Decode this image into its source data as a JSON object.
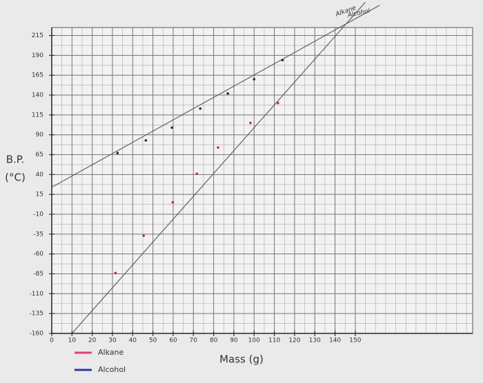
{
  "chart_data": {
    "type": "scatter",
    "xlabel": "Mass (g)",
    "ylabel": [
      "B.P.",
      "(°C)"
    ],
    "xlim": [
      0,
      208
    ],
    "ylim": [
      -160,
      225
    ],
    "xticks": [
      0,
      10,
      20,
      30,
      40,
      50,
      60,
      70,
      80,
      90,
      100,
      110,
      120,
      130,
      140,
      150
    ],
    "yticks": [
      215,
      190,
      165,
      140,
      115,
      90,
      65,
      40,
      15,
      -10,
      -35,
      -60,
      -85,
      -110,
      -135,
      -160
    ],
    "grid": true,
    "series": [
      {
        "name": "Alkane",
        "color": "#d0204a",
        "legend_color": "#e0407a",
        "x": [
          31.5,
          45.4,
          59.8,
          71.7,
          82.2,
          98.2,
          111.8
        ],
        "values": [
          -84,
          -37,
          5,
          41,
          74,
          105,
          130
        ]
      },
      {
        "name": "Alcohol",
        "color": "#1a2a5a",
        "legend_color": "#2a3aa0",
        "x": [
          32.5,
          46.5,
          59.4,
          73.4,
          87,
          100,
          114
        ],
        "values": [
          67,
          83,
          99,
          123,
          142,
          160,
          184
        ]
      }
    ],
    "trend_lines": [
      {
        "label": "Alkane",
        "x": [
          10,
          155
        ],
        "values": [
          -160,
          257
        ]
      },
      {
        "label": "Alcohol",
        "x": [
          0,
          162
        ],
        "values": [
          24,
          253
        ]
      }
    ]
  }
}
